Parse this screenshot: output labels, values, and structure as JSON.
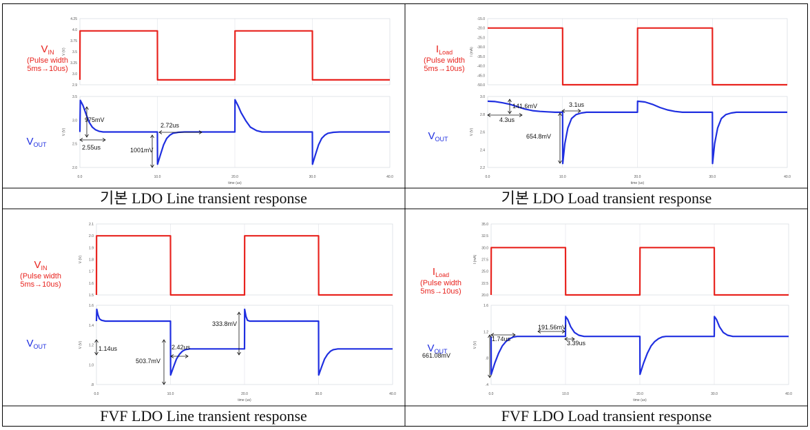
{
  "captions": [
    "기본 LDO Line transient response",
    "기본 LDO Load transient response",
    "FVF LDO Line transient response",
    "FVF LDO Load transient response"
  ],
  "colors": {
    "input": "#e8231e",
    "output": "#1f2fe0",
    "grid": "#cfd3dc",
    "border": "#000000"
  },
  "chart_data": [
    {
      "type": "line",
      "caption": "기본 LDO Line transient response",
      "input_label": {
        "main": "V",
        "sub": "IN",
        "note": [
          "(Pulse width",
          "5ms→10us)"
        ]
      },
      "output_label": {
        "main": "V",
        "sub": "OUT"
      },
      "xlabel": "time (us)",
      "xlim": [
        0,
        40
      ],
      "x_ticks": [
        "0.0",
        "10.0",
        "20.0",
        "30.0",
        "40.0"
      ],
      "top_panel": {
        "ylabel": "V (V)",
        "ylim": [
          2.9,
          4.25
        ],
        "y_ticks": [
          "4.25",
          "4.0",
          "3.75",
          "3.5",
          "3.25",
          "3.0",
          "2.9"
        ],
        "series": {
          "x": [
            0,
            0.02,
            10,
            10.02,
            20,
            20.02,
            30,
            30.02,
            40
          ],
          "y": [
            3.0,
            4.0,
            4.0,
            3.0,
            3.0,
            4.0,
            4.0,
            3.0,
            3.0
          ]
        }
      },
      "bottom_panel": {
        "ylabel": "V (V)",
        "ylim": [
          1.7,
          3.9
        ],
        "y_ticks": [
          "3.5",
          "3.0",
          "2.5",
          "2.0"
        ],
        "series": {
          "x": [
            0,
            0.05,
            0.4,
            0.8,
            1.2,
            1.6,
            2.0,
            2.5,
            3.0,
            4,
            10,
            10.02,
            10.4,
            10.8,
            11.2,
            11.6,
            12.0,
            12.7,
            13.5,
            20,
            20.02,
            20.4,
            20.8,
            21.4,
            22,
            22.8,
            23.5,
            30,
            30.02,
            30.4,
            30.8,
            31.2,
            31.6,
            32.0,
            32.7,
            33.5,
            40
          ],
          "y": [
            2.8,
            3.78,
            3.62,
            3.35,
            3.1,
            2.95,
            2.87,
            2.82,
            2.8,
            2.8,
            2.8,
            1.8,
            2.1,
            2.4,
            2.6,
            2.7,
            2.76,
            2.79,
            2.8,
            2.8,
            3.8,
            3.62,
            3.4,
            3.15,
            2.95,
            2.84,
            2.8,
            2.8,
            1.8,
            2.1,
            2.4,
            2.6,
            2.7,
            2.76,
            2.79,
            2.8,
            2.8
          ]
        },
        "annotations": [
          "975mV",
          "2.55us",
          "2.72us",
          "1001mV"
        ]
      }
    },
    {
      "type": "line",
      "caption": "기본 LDO Load transient response",
      "input_label": {
        "main": "I",
        "sub": "Load",
        "note": [
          "(Pulse width",
          "5ms→10us)"
        ]
      },
      "output_label": {
        "main": "V",
        "sub": "OUT"
      },
      "xlabel": "time (us)",
      "xlim": [
        0,
        40
      ],
      "x_ticks": [
        "0.0",
        "10.0",
        "20.0",
        "30.0",
        "40.0"
      ],
      "top_panel": {
        "ylabel": "I (mA)",
        "ylim": [
          -50.0,
          -15.0
        ],
        "y_ticks": [
          "-15.0",
          "-20.0",
          "-25.0",
          "-30.0",
          "-35.0",
          "-40.0",
          "-45.0",
          "-50.0"
        ],
        "series": {
          "x": [
            0,
            10,
            10.02,
            20,
            20.02,
            30,
            30.02,
            40
          ],
          "y": [
            -20.0,
            -20.0,
            -50.0,
            -50.0,
            -20.0,
            -20.0,
            -50.0,
            -50.0
          ]
        }
      },
      "bottom_panel": {
        "ylabel": "V (V)",
        "ylim": [
          2.1,
          3.0
        ],
        "y_ticks": [
          "3.0",
          "2.8",
          "2.6",
          "2.4",
          "2.2"
        ],
        "series": {
          "x": [
            0,
            1,
            2,
            3,
            4,
            5,
            6,
            7,
            8,
            9,
            10,
            10.02,
            10.3,
            10.7,
            11.2,
            11.8,
            12.5,
            13.2,
            20,
            20.02,
            21,
            22,
            23,
            24,
            25,
            26,
            30,
            30.02,
            30.3,
            30.7,
            31.2,
            31.8,
            32.5,
            33.2,
            40
          ],
          "y": [
            2.94,
            2.935,
            2.92,
            2.9,
            2.87,
            2.84,
            2.82,
            2.81,
            2.805,
            2.8,
            2.8,
            2.15,
            2.4,
            2.6,
            2.72,
            2.77,
            2.79,
            2.8,
            2.8,
            2.94,
            2.93,
            2.9,
            2.86,
            2.83,
            2.81,
            2.8,
            2.8,
            2.15,
            2.4,
            2.6,
            2.72,
            2.77,
            2.79,
            2.8,
            2.8
          ]
        },
        "annotations": [
          "141.6mV",
          "4.3us",
          "3.1us",
          "654.8mV"
        ]
      }
    },
    {
      "type": "line",
      "caption": "FVF LDO Line transient response",
      "input_label": {
        "main": "V",
        "sub": "IN",
        "note": [
          "(Pulse width",
          "5ms→10us)"
        ]
      },
      "output_label": {
        "main": "V",
        "sub": "OUT"
      },
      "xlabel": "time (us)",
      "xlim": [
        0,
        40
      ],
      "x_ticks": [
        "0.0",
        "10.0",
        "20.0",
        "30.0",
        "40.0"
      ],
      "top_panel": {
        "ylabel": "V (V)",
        "ylim": [
          1.5,
          2.1
        ],
        "y_ticks": [
          "2.1",
          "2.0",
          "1.9",
          "1.8",
          "1.7",
          "1.6",
          "1.5"
        ],
        "series": {
          "x": [
            0,
            0.02,
            10,
            10.02,
            20,
            20.02,
            30,
            30.02,
            40
          ],
          "y": [
            1.5,
            2.0,
            2.0,
            1.5,
            1.5,
            2.0,
            2.0,
            1.5,
            1.5
          ]
        }
      },
      "bottom_panel": {
        "ylabel": "V (V)",
        "ylim": [
          0.8,
          1.8
        ],
        "y_ticks": [
          "1.6",
          "1.4",
          "1.2",
          "1.0",
          ".8"
        ],
        "series": {
          "x": [
            0,
            0.05,
            0.2,
            0.4,
            0.7,
            1.2,
            2,
            10,
            10.02,
            10.4,
            10.8,
            11.2,
            11.6,
            12.0,
            12.6,
            13.4,
            20,
            20.02,
            20.2,
            20.4,
            20.7,
            21.2,
            22,
            30,
            30.02,
            30.4,
            30.8,
            31.2,
            31.6,
            32.0,
            32.6,
            33.4,
            40
          ],
          "y": [
            1.6,
            1.75,
            1.68,
            1.63,
            1.61,
            1.6,
            1.6,
            1.6,
            0.92,
            1.02,
            1.12,
            1.18,
            1.22,
            1.24,
            1.25,
            1.25,
            1.25,
            1.75,
            1.66,
            1.61,
            1.6,
            1.6,
            1.6,
            1.6,
            0.92,
            1.02,
            1.12,
            1.18,
            1.22,
            1.24,
            1.25,
            1.25,
            1.25
          ]
        },
        "annotations": [
          "1.14us",
          "503.7mV",
          "2.42us",
          "333.8mV"
        ]
      }
    },
    {
      "type": "line",
      "caption": "FVF LDO Load transient response",
      "input_label": {
        "main": "I",
        "sub": "Load",
        "note": [
          "(Pulse width",
          "5ms→10us)"
        ]
      },
      "output_label": {
        "main": "V",
        "sub": "OUT"
      },
      "xlabel": "time (us)",
      "xlim": [
        0,
        40
      ],
      "x_ticks": [
        "0.0",
        "10.0",
        "20.0",
        "30.0",
        "40.0"
      ],
      "top_panel": {
        "ylabel": "I (mA)",
        "ylim": [
          20.0,
          35.0
        ],
        "y_ticks": [
          "35.0",
          "32.5",
          "30.0",
          "27.5",
          "25.0",
          "22.5",
          "20.0"
        ],
        "series": {
          "x": [
            0,
            0.02,
            10,
            10.02,
            20,
            20.02,
            30,
            30.02,
            40
          ],
          "y": [
            20.0,
            30.0,
            30.0,
            20.0,
            20.0,
            30.0,
            30.0,
            20.0,
            20.0
          ]
        }
      },
      "bottom_panel": {
        "ylabel": "V (V)",
        "ylim": [
          0.4,
          1.8
        ],
        "y_ticks": [
          "1.6",
          "1.2",
          ".8",
          ".4"
        ],
        "series": {
          "x": [
            0,
            0.02,
            0.5,
            1,
            1.5,
            2,
            2.5,
            3,
            3.5,
            10,
            10.02,
            10.3,
            10.7,
            11.2,
            11.8,
            12.5,
            20,
            20.02,
            20.5,
            21,
            21.5,
            22,
            22.5,
            23,
            23.5,
            30,
            30.02,
            30.3,
            30.7,
            31.2,
            31.8,
            32.5,
            40
          ],
          "y": [
            1.25,
            0.58,
            0.78,
            0.95,
            1.08,
            1.16,
            1.21,
            1.24,
            1.25,
            1.25,
            1.6,
            1.55,
            1.42,
            1.32,
            1.27,
            1.25,
            1.25,
            0.58,
            0.78,
            0.95,
            1.08,
            1.16,
            1.21,
            1.24,
            1.25,
            1.25,
            1.6,
            1.55,
            1.42,
            1.32,
            1.27,
            1.25,
            1.25
          ]
        },
        "annotations": [
          "1.74us",
          "661.08mV",
          "191.56mV",
          "3.39us"
        ]
      }
    }
  ]
}
